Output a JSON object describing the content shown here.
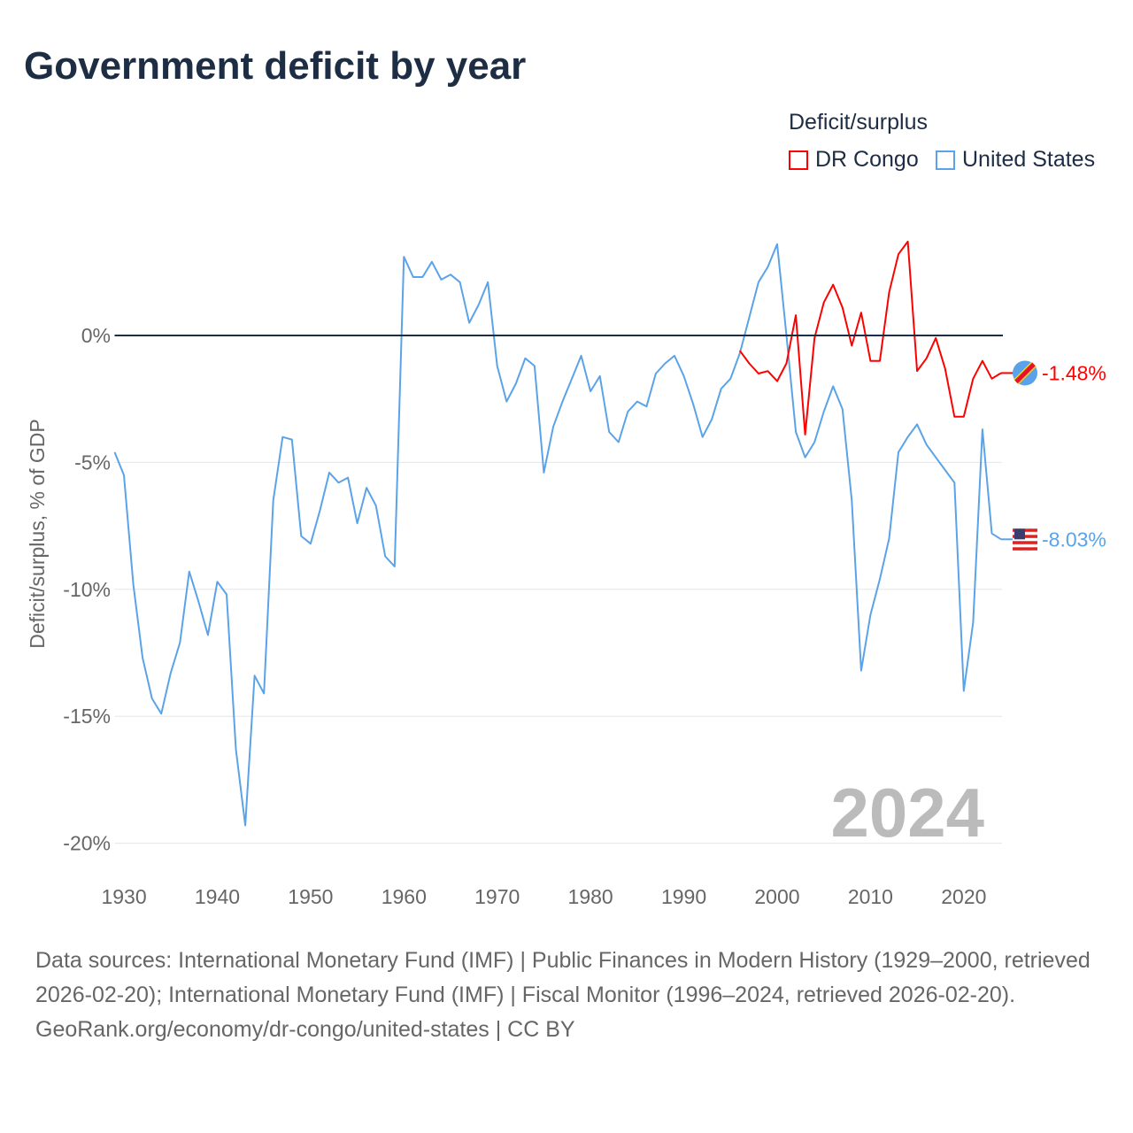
{
  "title": "Government deficit by year",
  "legend": {
    "title": "Deficit/surplus",
    "items": [
      {
        "label": "DR Congo",
        "color": "#ff0000"
      },
      {
        "label": "United States",
        "color": "#5ba3e8"
      }
    ]
  },
  "footer": {
    "sources": "Data sources: International Monetary Fund (IMF) | Public Finances in Modern History (1929–2000, retrieved 2026-02-20); International Monetary Fund (IMF) | Fiscal Monitor (1996–2024, retrieved 2026-02-20).",
    "credit": "GeoRank.org/economy/dr-congo/united-states | CC BY"
  },
  "chart_data": {
    "type": "line",
    "title": "Government deficit by year",
    "xlabel": "",
    "ylabel": "Deficit/surplus, % of GDP",
    "xlim": [
      1929,
      2024
    ],
    "ylim": [
      -20,
      4
    ],
    "xticks": [
      "1930",
      "1940",
      "1950",
      "1960",
      "1970",
      "1980",
      "1990",
      "2000",
      "2010",
      "2020"
    ],
    "yticks": [
      "0%",
      "-5%",
      "-10%",
      "-15%",
      "-20%"
    ],
    "year_label": "2024",
    "series": [
      {
        "name": "United States",
        "color": "#5ba3e8",
        "start_year": 1929,
        "end_label": "-8.03%",
        "values": [
          -4.6,
          -5.5,
          -9.8,
          -12.7,
          -14.3,
          -14.9,
          -13.3,
          -12.1,
          -9.3,
          -10.5,
          -11.8,
          -9.7,
          -10.2,
          -16.3,
          -19.3,
          -13.4,
          -14.1,
          -6.5,
          -4.0,
          -4.1,
          -7.9,
          -8.2,
          -6.9,
          -5.4,
          -5.8,
          -5.6,
          -7.4,
          -6.0,
          -6.7,
          -8.7,
          -9.1,
          3.1,
          2.3,
          2.3,
          2.9,
          2.2,
          2.4,
          2.1,
          0.5,
          1.2,
          2.1,
          -1.2,
          -2.6,
          -1.9,
          -0.9,
          -1.2,
          -5.4,
          -3.6,
          -2.6,
          -1.7,
          -0.8,
          -2.2,
          -1.6,
          -3.8,
          -4.2,
          -3.0,
          -2.6,
          -2.8,
          -1.5,
          -1.1,
          -0.8,
          -1.6,
          -2.7,
          -4.0,
          -3.3,
          -2.1,
          -1.7,
          -0.7,
          0.7,
          2.1,
          2.7,
          3.6,
          0.0,
          -3.8,
          -4.8,
          -4.2,
          -3.0,
          -2.0,
          -2.9,
          -6.5,
          -13.2,
          -11.0,
          -9.6,
          -8.0,
          -4.6,
          -4.0,
          -3.5,
          -4.3,
          -4.8,
          -5.3,
          -5.8,
          -14.0,
          -11.3,
          -3.7,
          -7.8,
          -8.03
        ]
      },
      {
        "name": "DR Congo",
        "color": "#ff0000",
        "start_year": 1996,
        "end_label": "-1.48%",
        "values": [
          -0.6,
          -1.1,
          -1.5,
          -1.4,
          -1.8,
          -1.1,
          0.8,
          -3.9,
          -0.1,
          1.3,
          2.0,
          1.1,
          -0.4,
          0.9,
          -1.0,
          -1.0,
          1.7,
          3.2,
          3.7,
          -1.4,
          -0.9,
          -0.1,
          -1.3,
          -3.2,
          -3.2,
          -1.7,
          -1.0,
          -1.7,
          -1.48
        ]
      }
    ]
  }
}
